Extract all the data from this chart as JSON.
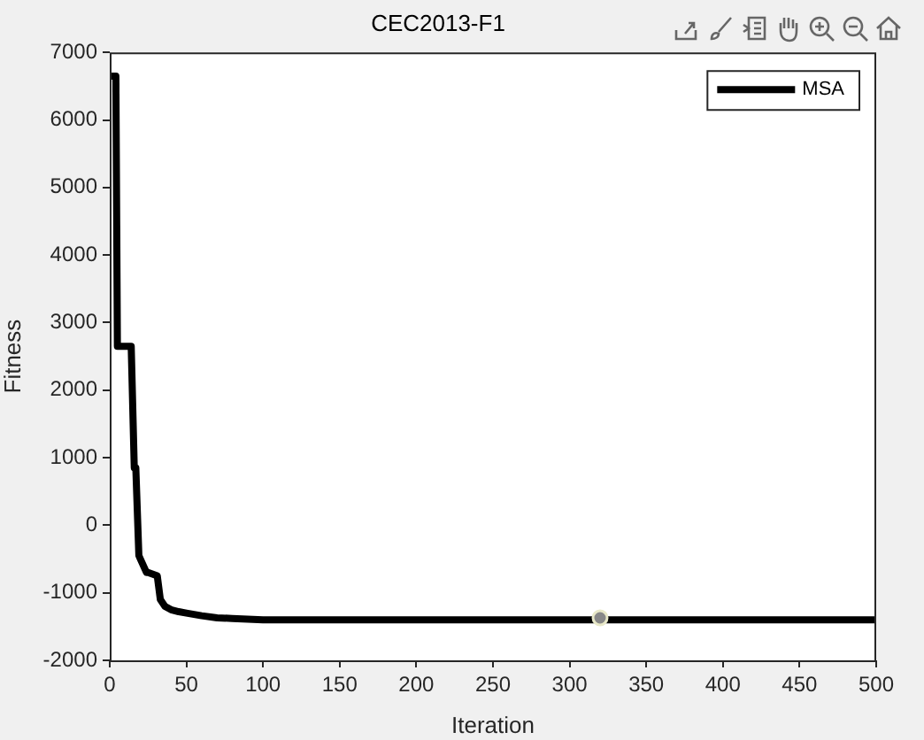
{
  "chart_data": {
    "type": "line",
    "title": "CEC2013-F1",
    "xlabel": "Iteration",
    "ylabel": "Fitness",
    "xlim": [
      0,
      500
    ],
    "ylim": [
      -2000,
      7000
    ],
    "xticks": [
      0,
      50,
      100,
      150,
      200,
      250,
      300,
      350,
      400,
      450,
      500
    ],
    "yticks": [
      -2000,
      -1000,
      0,
      1000,
      2000,
      3000,
      4000,
      5000,
      6000,
      7000
    ],
    "grid": false,
    "legend": "top right",
    "marker": "none",
    "line_style": "solid",
    "series": [
      {
        "name": "MSA",
        "color": "#000000",
        "x": [
          1,
          4,
          5,
          14,
          16,
          17,
          19,
          20,
          24,
          25,
          31,
          33,
          36,
          40,
          45,
          50,
          60,
          70,
          80,
          100,
          150,
          200,
          300,
          400,
          500
        ],
        "values": [
          6650,
          6650,
          2650,
          2650,
          850,
          850,
          -450,
          -500,
          -700,
          -700,
          -750,
          -1100,
          -1200,
          -1250,
          -1280,
          -1300,
          -1340,
          -1370,
          -1380,
          -1400,
          -1400,
          -1400,
          -1400,
          -1400,
          -1400
        ]
      }
    ]
  }
}
